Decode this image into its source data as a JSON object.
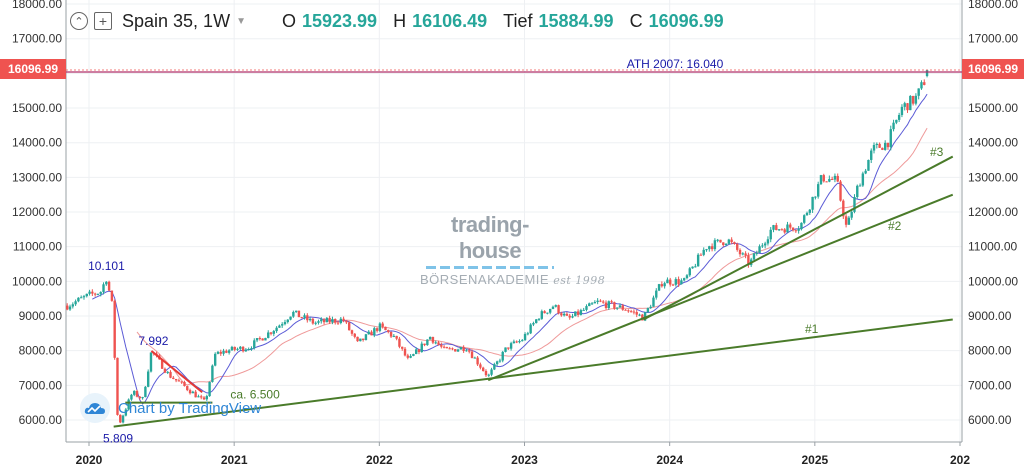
{
  "header": {
    "symbol": "Spain 35, 1W",
    "open_label": "O",
    "open_value": "15923.99",
    "high_label": "H",
    "high_value": "16106.49",
    "low_label": "Tief",
    "low_value": "15884.99",
    "close_label": "C",
    "close_value": "16096.99",
    "value_color": "#26a69a"
  },
  "price_tag": {
    "value": "16096.99",
    "color": "#ef5350"
  },
  "watermark": {
    "top": "trading-house",
    "bottom": "BÖRSENAKADEMIE",
    "tagline": "est 1998"
  },
  "tv_badge": {
    "text": "Chart by TradingView",
    "color": "#2f86d6"
  },
  "chart_data": {
    "type": "candlestick",
    "title": "Spain 35, 1W",
    "y_ticks": [
      "18000.00",
      "17000.00",
      "16000.00",
      "15000.00",
      "14000.00",
      "13000.00",
      "12000.00",
      "11000.00",
      "10000.00",
      "9000.00",
      "8000.00",
      "7000.00",
      "6000.00"
    ],
    "x_ticks": [
      "2020",
      "2021",
      "2022",
      "2023",
      "2024",
      "2025",
      "202"
    ],
    "ylim": [
      5500,
      18200
    ],
    "xlim": [
      2019.85,
      2025.95
    ],
    "grid": true,
    "key_points": [
      {
        "t": 2019.85,
        "v": 9300
      },
      {
        "t": 2020.0,
        "v": 9600
      },
      {
        "t": 2020.08,
        "v": 9700
      },
      {
        "t": 2020.12,
        "v": 10101
      },
      {
        "t": 2020.16,
        "v": 9300
      },
      {
        "t": 2020.2,
        "v": 5809
      },
      {
        "t": 2020.3,
        "v": 6800
      },
      {
        "t": 2020.37,
        "v": 6600
      },
      {
        "t": 2020.43,
        "v": 7992
      },
      {
        "t": 2020.55,
        "v": 7300
      },
      {
        "t": 2020.68,
        "v": 6900
      },
      {
        "t": 2020.8,
        "v": 6500
      },
      {
        "t": 2020.87,
        "v": 7900
      },
      {
        "t": 2020.95,
        "v": 8000
      },
      {
        "t": 2021.1,
        "v": 8100
      },
      {
        "t": 2021.3,
        "v": 8700
      },
      {
        "t": 2021.4,
        "v": 9100
      },
      {
        "t": 2021.55,
        "v": 8800
      },
      {
        "t": 2021.75,
        "v": 8900
      },
      {
        "t": 2021.85,
        "v": 8200
      },
      {
        "t": 2022.0,
        "v": 8700
      },
      {
        "t": 2022.1,
        "v": 8400
      },
      {
        "t": 2022.2,
        "v": 7700
      },
      {
        "t": 2022.35,
        "v": 8400
      },
      {
        "t": 2022.45,
        "v": 8000
      },
      {
        "t": 2022.6,
        "v": 8100
      },
      {
        "t": 2022.75,
        "v": 7250
      },
      {
        "t": 2022.88,
        "v": 8100
      },
      {
        "t": 2022.98,
        "v": 8300
      },
      {
        "t": 2023.1,
        "v": 9000
      },
      {
        "t": 2023.2,
        "v": 9300
      },
      {
        "t": 2023.3,
        "v": 8900
      },
      {
        "t": 2023.5,
        "v": 9400
      },
      {
        "t": 2023.7,
        "v": 9200
      },
      {
        "t": 2023.82,
        "v": 8950
      },
      {
        "t": 2023.95,
        "v": 10000
      },
      {
        "t": 2024.1,
        "v": 10000
      },
      {
        "t": 2024.25,
        "v": 11000
      },
      {
        "t": 2024.4,
        "v": 11200
      },
      {
        "t": 2024.55,
        "v": 10500
      },
      {
        "t": 2024.7,
        "v": 11500
      },
      {
        "t": 2024.9,
        "v": 11600
      },
      {
        "t": 2025.05,
        "v": 13000
      },
      {
        "t": 2025.15,
        "v": 12900
      },
      {
        "t": 2025.22,
        "v": 11500
      },
      {
        "t": 2025.3,
        "v": 12800
      },
      {
        "t": 2025.4,
        "v": 13800
      },
      {
        "t": 2025.5,
        "v": 14000
      },
      {
        "t": 2025.6,
        "v": 15000
      },
      {
        "t": 2025.7,
        "v": 15300
      },
      {
        "t": 2025.79,
        "v": 16096.99
      }
    ],
    "trendlines": [
      {
        "label": "#1",
        "from": {
          "t": 2020.17,
          "v": 5809
        },
        "to": {
          "t": 2025.95,
          "v": 8900
        },
        "color": "#4a7b2a"
      },
      {
        "label": "#2",
        "from": {
          "t": 2022.75,
          "v": 7150
        },
        "to": {
          "t": 2025.95,
          "v": 12500
        },
        "color": "#4a7b2a"
      },
      {
        "label": "#3",
        "from": {
          "t": 2023.82,
          "v": 8900
        },
        "to": {
          "t": 2025.95,
          "v": 13600
        },
        "color": "#4a7b2a"
      }
    ],
    "support_line": {
      "label": "ca. 6.500",
      "value": 6500,
      "from_t": 2020.25,
      "to_t": 2020.85,
      "color": "#4a7b2a"
    },
    "downtrend": {
      "from": {
        "t": 2020.43,
        "v": 7992
      },
      "to": {
        "t": 2020.78,
        "v": 6800
      },
      "color": "#e53935"
    },
    "ath_line": {
      "label": "ATH 2007: 16.040",
      "value": 16040,
      "color": "#b0306a",
      "label_color": "#1a1aa8"
    },
    "annotations": [
      {
        "text": "10.101",
        "t": 2020.12,
        "v": 10101,
        "color": "#1a1aa8"
      },
      {
        "text": "7.992",
        "t": 2020.43,
        "v": 7992,
        "color": "#1a1aa8"
      },
      {
        "text": "5.809",
        "t": 2020.2,
        "v": 5809,
        "color": "#1a1aa8"
      }
    ],
    "colors": {
      "up": "#26a69a",
      "down": "#ef5350",
      "ma_fast": "#5b5bd6",
      "ma_slow": "#ef9a9a"
    }
  }
}
